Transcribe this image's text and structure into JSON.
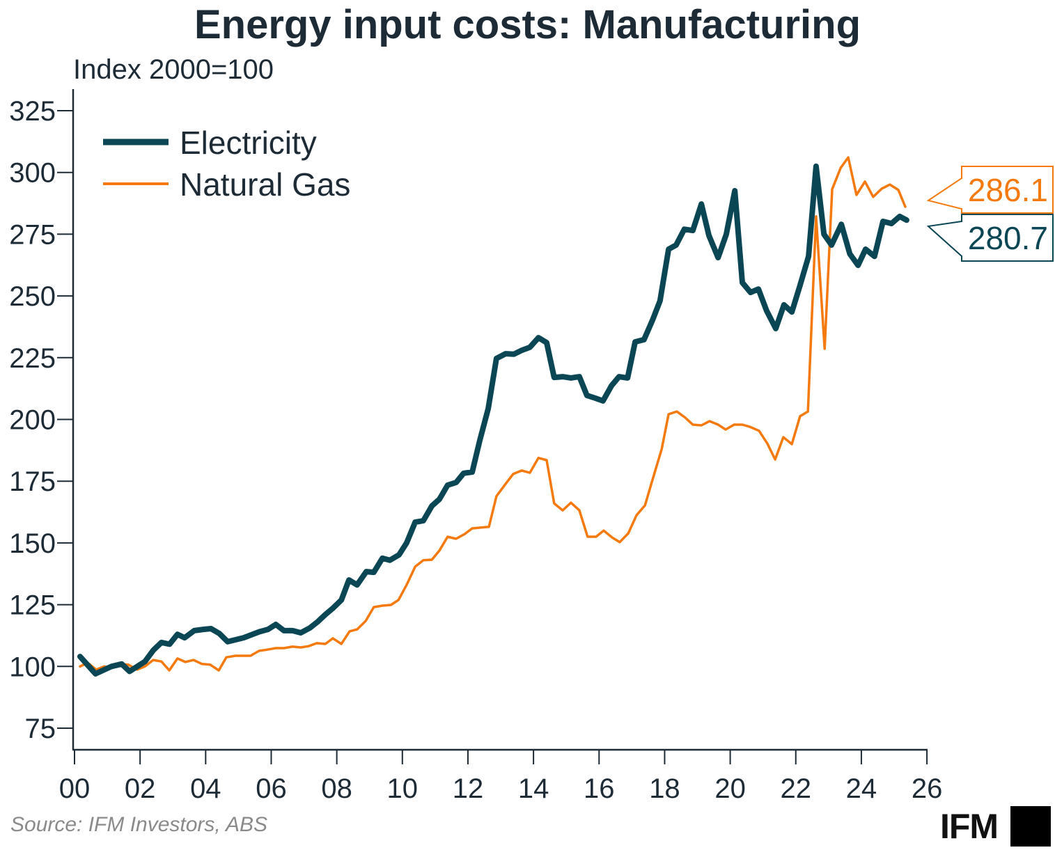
{
  "chart_data": {
    "type": "line",
    "title": "Energy input costs: Manufacturing",
    "ylabel": "Index 2000=100",
    "xlabel": "",
    "xlim": [
      2000,
      2026
    ],
    "ylim": [
      68,
      333
    ],
    "x_ticks": [
      "00",
      "02",
      "04",
      "06",
      "08",
      "10",
      "12",
      "14",
      "16",
      "18",
      "20",
      "22",
      "24",
      "26"
    ],
    "y_ticks": [
      "75",
      "100",
      "125",
      "150",
      "175",
      "200",
      "225",
      "250",
      "275",
      "300",
      "325"
    ],
    "grid": false,
    "legend_position": "top-left",
    "source": "Source: IFM Investors, ABS",
    "series": [
      {
        "name": "Electricity",
        "color": "#0a4653",
        "last_value_label": "280.7",
        "points": [
          [
            2000.17,
            104
          ],
          [
            2000.64,
            97
          ],
          [
            2001.13,
            100
          ],
          [
            2001.44,
            101
          ],
          [
            2001.68,
            98
          ],
          [
            2002.15,
            102
          ],
          [
            2002.4,
            106.5
          ],
          [
            2002.65,
            109.7
          ],
          [
            2002.9,
            109
          ],
          [
            2003.14,
            113
          ],
          [
            2003.36,
            111.6
          ],
          [
            2003.65,
            114.5
          ],
          [
            2003.93,
            115
          ],
          [
            2004.16,
            115.3
          ],
          [
            2004.42,
            113.3
          ],
          [
            2004.67,
            110
          ],
          [
            2005.16,
            111.6
          ],
          [
            2005.63,
            114
          ],
          [
            2005.9,
            115
          ],
          [
            2006.14,
            117
          ],
          [
            2006.39,
            114.5
          ],
          [
            2006.65,
            114.5
          ],
          [
            2006.9,
            113.6
          ],
          [
            2007.18,
            115.6
          ],
          [
            2007.41,
            118
          ],
          [
            2007.65,
            121
          ],
          [
            2007.9,
            123.8
          ],
          [
            2008.14,
            126.9
          ],
          [
            2008.37,
            135
          ],
          [
            2008.62,
            133
          ],
          [
            2008.9,
            138.4
          ],
          [
            2009.13,
            138.1
          ],
          [
            2009.39,
            143.8
          ],
          [
            2009.62,
            143
          ],
          [
            2009.9,
            145.2
          ],
          [
            2010.13,
            150
          ],
          [
            2010.39,
            158.4
          ],
          [
            2010.64,
            159
          ],
          [
            2010.9,
            165
          ],
          [
            2011.13,
            167.7
          ],
          [
            2011.38,
            173.4
          ],
          [
            2011.64,
            174.5
          ],
          [
            2011.87,
            178.2
          ],
          [
            2012.13,
            178.7
          ],
          [
            2012.36,
            191.4
          ],
          [
            2012.62,
            204.4
          ],
          [
            2012.87,
            224.7
          ],
          [
            2013.15,
            226.6
          ],
          [
            2013.4,
            226.4
          ],
          [
            2013.64,
            228
          ],
          [
            2013.89,
            229.2
          ],
          [
            2014.15,
            233.1
          ],
          [
            2014.4,
            231.1
          ],
          [
            2014.63,
            217
          ],
          [
            2014.89,
            217.3
          ],
          [
            2015.14,
            216.8
          ],
          [
            2015.4,
            217.3
          ],
          [
            2015.63,
            209.7
          ],
          [
            2015.89,
            208.6
          ],
          [
            2016.12,
            207.5
          ],
          [
            2016.38,
            213.7
          ],
          [
            2016.61,
            217.3
          ],
          [
            2016.87,
            216.8
          ],
          [
            2017.1,
            231.4
          ],
          [
            2017.37,
            232.3
          ],
          [
            2017.63,
            240.2
          ],
          [
            2017.86,
            248
          ],
          [
            2018.12,
            268.9
          ],
          [
            2018.35,
            270.6
          ],
          [
            2018.6,
            277
          ],
          [
            2018.86,
            276.5
          ],
          [
            2019.12,
            287.2
          ],
          [
            2019.35,
            274.5
          ],
          [
            2019.63,
            265.5
          ],
          [
            2019.88,
            275
          ],
          [
            2020.14,
            292.6
          ],
          [
            2020.37,
            255.4
          ],
          [
            2020.62,
            251.4
          ],
          [
            2020.86,
            252.8
          ],
          [
            2021.11,
            244
          ],
          [
            2021.39,
            236.8
          ],
          [
            2021.64,
            246.4
          ],
          [
            2021.88,
            243.5
          ],
          [
            2022.13,
            254.3
          ],
          [
            2022.39,
            266
          ],
          [
            2022.62,
            302.5
          ],
          [
            2022.86,
            275
          ],
          [
            2023.09,
            270.6
          ],
          [
            2023.39,
            279
          ],
          [
            2023.65,
            267
          ],
          [
            2023.9,
            262.4
          ],
          [
            2024.13,
            268.9
          ],
          [
            2024.4,
            266
          ],
          [
            2024.66,
            280.2
          ],
          [
            2024.92,
            279.3
          ],
          [
            2025.17,
            282.2
          ],
          [
            2025.38,
            280.7
          ]
        ]
      },
      {
        "name": "Natural Gas",
        "color": "#f47a0f",
        "last_value_label": "286.1",
        "points": [
          [
            2000.17,
            100
          ],
          [
            2000.4,
            101.5
          ],
          [
            2000.66,
            98.7
          ],
          [
            2000.91,
            100
          ],
          [
            2001.13,
            99.5
          ],
          [
            2001.38,
            101
          ],
          [
            2001.64,
            100.7
          ],
          [
            2001.91,
            98.7
          ],
          [
            2002.15,
            100
          ],
          [
            2002.4,
            102.6
          ],
          [
            2002.65,
            102
          ],
          [
            2002.89,
            98.4
          ],
          [
            2003.14,
            103.2
          ],
          [
            2003.38,
            101.8
          ],
          [
            2003.63,
            102.6
          ],
          [
            2003.89,
            101
          ],
          [
            2004.14,
            100.7
          ],
          [
            2004.4,
            98.4
          ],
          [
            2004.63,
            103.7
          ],
          [
            2004.91,
            104.3
          ],
          [
            2005.37,
            104.3
          ],
          [
            2005.63,
            106.3
          ],
          [
            2005.88,
            106.8
          ],
          [
            2006.14,
            107.4
          ],
          [
            2006.39,
            107.4
          ],
          [
            2006.65,
            108
          ],
          [
            2006.9,
            107.7
          ],
          [
            2007.14,
            108.2
          ],
          [
            2007.39,
            109.4
          ],
          [
            2007.65,
            109.1
          ],
          [
            2007.88,
            111.4
          ],
          [
            2008.14,
            109.1
          ],
          [
            2008.39,
            114.2
          ],
          [
            2008.62,
            115
          ],
          [
            2008.88,
            118.4
          ],
          [
            2009.13,
            124
          ],
          [
            2009.39,
            124.6
          ],
          [
            2009.65,
            124.9
          ],
          [
            2009.88,
            126.9
          ],
          [
            2010.13,
            133
          ],
          [
            2010.39,
            140.4
          ],
          [
            2010.64,
            143
          ],
          [
            2010.9,
            143.2
          ],
          [
            2011.13,
            146.9
          ],
          [
            2011.38,
            152.5
          ],
          [
            2011.64,
            151.7
          ],
          [
            2011.9,
            153.6
          ],
          [
            2012.13,
            155.9
          ],
          [
            2012.38,
            156.2
          ],
          [
            2012.64,
            156.5
          ],
          [
            2012.87,
            168.9
          ],
          [
            2013.13,
            173.6
          ],
          [
            2013.38,
            177.9
          ],
          [
            2013.64,
            179.3
          ],
          [
            2013.89,
            178.4
          ],
          [
            2014.15,
            184.4
          ],
          [
            2014.4,
            183.5
          ],
          [
            2014.63,
            166
          ],
          [
            2014.89,
            163.2
          ],
          [
            2015.14,
            166.3
          ],
          [
            2015.4,
            163.2
          ],
          [
            2015.65,
            152.5
          ],
          [
            2015.91,
            152.5
          ],
          [
            2016.14,
            155
          ],
          [
            2016.4,
            152.2
          ],
          [
            2016.63,
            150.3
          ],
          [
            2016.89,
            153.9
          ],
          [
            2017.14,
            161.2
          ],
          [
            2017.4,
            165.2
          ],
          [
            2017.65,
            176.5
          ],
          [
            2017.91,
            188
          ],
          [
            2018.12,
            202.1
          ],
          [
            2018.37,
            203.2
          ],
          [
            2018.63,
            200.7
          ],
          [
            2018.86,
            197.9
          ],
          [
            2019.12,
            197.6
          ],
          [
            2019.37,
            199.3
          ],
          [
            2019.63,
            197.9
          ],
          [
            2019.86,
            195.9
          ],
          [
            2020.12,
            197.9
          ],
          [
            2020.37,
            197.9
          ],
          [
            2020.6,
            197
          ],
          [
            2020.88,
            195.4
          ],
          [
            2021.13,
            190.3
          ],
          [
            2021.37,
            183.8
          ],
          [
            2021.62,
            192.8
          ],
          [
            2021.88,
            190
          ],
          [
            2022.13,
            201.3
          ],
          [
            2022.37,
            203.2
          ],
          [
            2022.62,
            282.2
          ],
          [
            2022.88,
            228.6
          ],
          [
            2023.11,
            293.2
          ],
          [
            2023.37,
            301.9
          ],
          [
            2023.6,
            306.1
          ],
          [
            2023.85,
            290.9
          ],
          [
            2024.11,
            296.3
          ],
          [
            2024.36,
            290.1
          ],
          [
            2024.62,
            293.4
          ],
          [
            2024.87,
            295.1
          ],
          [
            2025.13,
            292.9
          ],
          [
            2025.34,
            286.1
          ]
        ]
      }
    ]
  },
  "logo": {
    "text": "IFM"
  }
}
